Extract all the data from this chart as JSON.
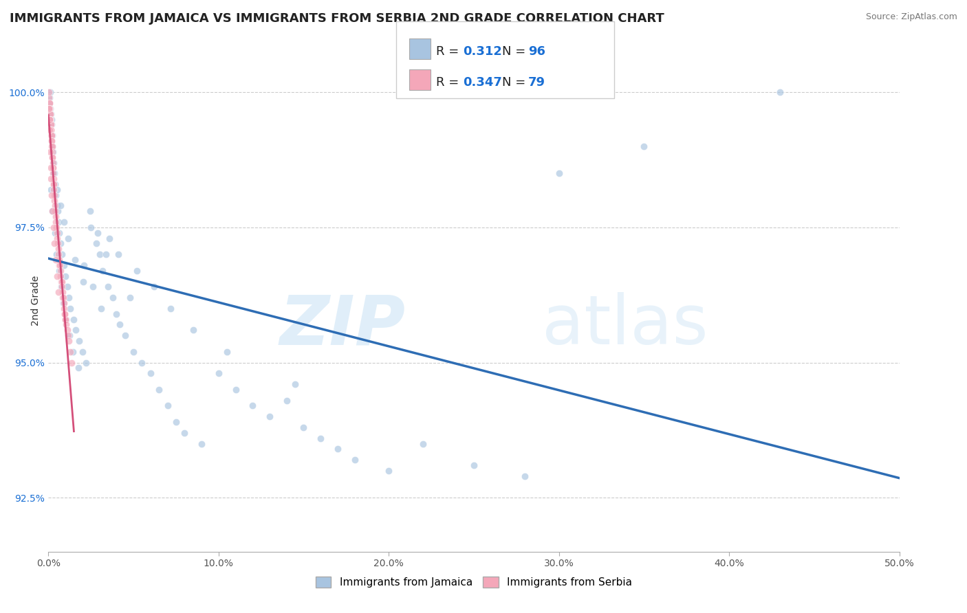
{
  "title": "IMMIGRANTS FROM JAMAICA VS IMMIGRANTS FROM SERBIA 2ND GRADE CORRELATION CHART",
  "source_text": "Source: ZipAtlas.com",
  "xlabel": "",
  "ylabel": "2nd Grade",
  "xlim": [
    0.0,
    50.0
  ],
  "ylim": [
    91.5,
    100.8
  ],
  "x_tick_labels": [
    "0.0%",
    "10.0%",
    "20.0%",
    "30.0%",
    "40.0%",
    "50.0%"
  ],
  "x_tick_values": [
    0,
    10,
    20,
    30,
    40,
    50
  ],
  "y_tick_labels": [
    "92.5%",
    "95.0%",
    "97.5%",
    "100.0%"
  ],
  "y_tick_values": [
    92.5,
    95.0,
    97.5,
    100.0
  ],
  "jamaica_color": "#a8c4e0",
  "serbia_color": "#f4a7b9",
  "jamaica_R": 0.312,
  "jamaica_N": 96,
  "serbia_R": 0.347,
  "serbia_N": 79,
  "legend_label_jamaica": "Immigrants from Jamaica",
  "legend_label_serbia": "Immigrants from Serbia",
  "watermark_zip": "ZIP",
  "watermark_atlas": "atlas",
  "background_color": "#ffffff",
  "scatter_alpha": 0.65,
  "scatter_size": 55,
  "jamaica_scatter_x": [
    0.05,
    0.08,
    0.1,
    0.12,
    0.15,
    0.18,
    0.2,
    0.22,
    0.25,
    0.28,
    0.3,
    0.35,
    0.4,
    0.45,
    0.5,
    0.55,
    0.6,
    0.65,
    0.7,
    0.8,
    0.9,
    1.0,
    1.1,
    1.2,
    1.3,
    1.5,
    1.6,
    1.8,
    2.0,
    2.2,
    2.5,
    2.8,
    3.0,
    3.2,
    3.5,
    3.8,
    4.0,
    4.2,
    4.5,
    5.0,
    5.5,
    6.0,
    6.5,
    7.0,
    7.5,
    8.0,
    9.0,
    10.0,
    11.0,
    12.0,
    13.0,
    14.0,
    15.0,
    16.0,
    17.0,
    18.0,
    20.0,
    22.0,
    25.0,
    28.0,
    0.15,
    0.25,
    0.38,
    0.48,
    0.62,
    0.75,
    0.88,
    1.05,
    1.25,
    1.45,
    1.75,
    2.1,
    2.6,
    3.1,
    3.6,
    4.1,
    5.2,
    6.2,
    7.2,
    8.5,
    10.5,
    14.5,
    0.32,
    0.52,
    0.72,
    0.92,
    1.15,
    1.55,
    2.05,
    2.45,
    2.9,
    3.4,
    4.8,
    43.0,
    30.0,
    35.0
  ],
  "jamaica_scatter_y": [
    99.8,
    99.9,
    99.7,
    100.0,
    99.6,
    99.5,
    99.4,
    99.2,
    99.0,
    98.9,
    98.7,
    98.5,
    98.3,
    98.1,
    97.9,
    97.8,
    97.6,
    97.4,
    97.2,
    97.0,
    96.8,
    96.6,
    96.4,
    96.2,
    96.0,
    95.8,
    95.6,
    95.4,
    95.2,
    95.0,
    97.5,
    97.2,
    97.0,
    96.7,
    96.4,
    96.2,
    95.9,
    95.7,
    95.5,
    95.2,
    95.0,
    94.8,
    94.5,
    94.2,
    93.9,
    93.7,
    93.5,
    94.8,
    94.5,
    94.2,
    94.0,
    94.3,
    93.8,
    93.6,
    93.4,
    93.2,
    93.0,
    93.5,
    93.1,
    92.9,
    98.2,
    97.8,
    97.4,
    97.0,
    96.7,
    96.4,
    96.1,
    95.8,
    95.5,
    95.2,
    94.9,
    96.8,
    96.4,
    96.0,
    97.3,
    97.0,
    96.7,
    96.4,
    96.0,
    95.6,
    95.2,
    94.6,
    98.5,
    98.2,
    97.9,
    97.6,
    97.3,
    96.9,
    96.5,
    97.8,
    97.4,
    97.0,
    96.2,
    100.0,
    98.5,
    99.0
  ],
  "serbia_scatter_x": [
    0.02,
    0.04,
    0.05,
    0.06,
    0.07,
    0.08,
    0.09,
    0.1,
    0.11,
    0.12,
    0.13,
    0.14,
    0.15,
    0.16,
    0.17,
    0.18,
    0.19,
    0.2,
    0.21,
    0.22,
    0.23,
    0.24,
    0.25,
    0.26,
    0.27,
    0.28,
    0.29,
    0.3,
    0.31,
    0.32,
    0.33,
    0.34,
    0.35,
    0.38,
    0.4,
    0.42,
    0.45,
    0.48,
    0.5,
    0.52,
    0.55,
    0.58,
    0.6,
    0.63,
    0.65,
    0.68,
    0.7,
    0.73,
    0.75,
    0.78,
    0.8,
    0.83,
    0.85,
    0.88,
    0.9,
    0.93,
    0.95,
    0.98,
    1.0,
    1.05,
    1.1,
    1.15,
    1.2,
    1.28,
    1.35,
    0.03,
    0.05,
    0.07,
    0.1,
    0.13,
    0.16,
    0.2,
    0.25,
    0.3,
    0.36,
    0.42,
    0.5,
    0.6,
    0.95
  ],
  "serbia_scatter_y": [
    99.9,
    100.0,
    99.8,
    99.8,
    99.7,
    99.7,
    99.6,
    99.6,
    99.5,
    99.5,
    99.4,
    99.4,
    99.3,
    99.3,
    99.2,
    99.2,
    99.1,
    99.1,
    99.0,
    99.0,
    98.9,
    98.8,
    98.8,
    98.7,
    98.6,
    98.6,
    98.5,
    98.4,
    98.3,
    98.3,
    98.2,
    98.1,
    98.0,
    97.9,
    97.8,
    97.7,
    97.6,
    97.5,
    97.4,
    97.3,
    97.2,
    97.1,
    97.0,
    96.9,
    96.8,
    96.8,
    96.7,
    96.6,
    96.5,
    96.5,
    96.4,
    96.3,
    96.2,
    96.2,
    96.1,
    96.0,
    95.9,
    95.8,
    95.8,
    95.7,
    95.6,
    95.5,
    95.4,
    95.2,
    95.0,
    99.7,
    99.5,
    99.3,
    98.9,
    98.6,
    98.4,
    98.1,
    97.8,
    97.5,
    97.2,
    96.9,
    96.6,
    96.3,
    95.9
  ],
  "grid_color": "#cccccc",
  "title_fontsize": 13,
  "axis_label_fontsize": 10,
  "tick_fontsize": 10,
  "legend_fontsize": 11,
  "stat_fontsize": 13,
  "stat_color": "#1a6fd4",
  "right_label_color": "#1a6fd4",
  "trend_blue": "#2e6db4",
  "trend_pink": "#d44f7a"
}
